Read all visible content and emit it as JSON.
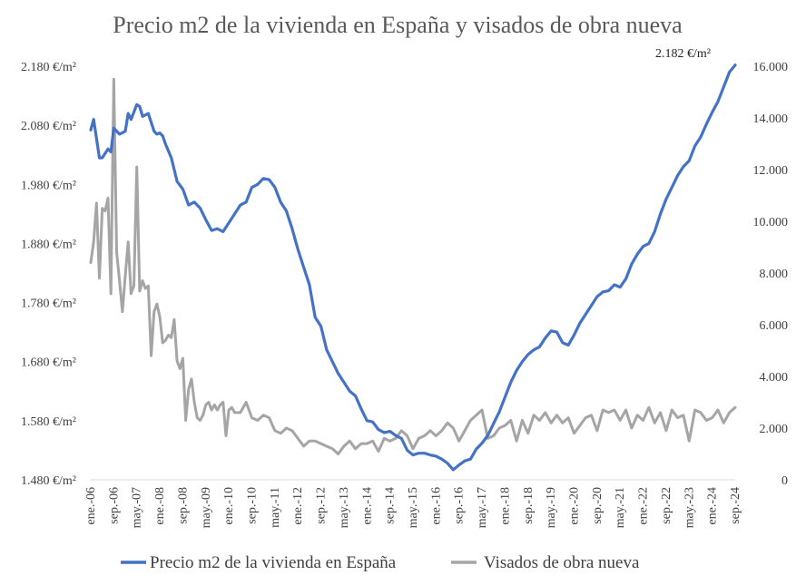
{
  "chart_data": {
    "type": "line",
    "title": "Precio m2 de la vivienda en España y visados de obra nueva",
    "left_axis": {
      "ylim": [
        1480,
        2180
      ],
      "ticks": [
        1480,
        1580,
        1680,
        1780,
        1880,
        1980,
        2080,
        2180
      ],
      "tick_labels": [
        "1.480 €/m²",
        "1.580 €/m²",
        "1.680 €/m²",
        "1.780 €/m²",
        "1.880 €/m²",
        "1.980 €/m²",
        "2.080 €/m²",
        "2.180 €/m²"
      ]
    },
    "right_axis": {
      "ylim": [
        0,
        16000
      ],
      "ticks": [
        0,
        2000,
        4000,
        6000,
        8000,
        10000,
        12000,
        14000,
        16000
      ],
      "tick_labels": [
        "0",
        "2.000",
        "4.000",
        "6.000",
        "8.000",
        "10.000",
        "12.000",
        "14.000",
        "16.000"
      ]
    },
    "x_tick_labels": [
      "ene.-06",
      "sep.-06",
      "may.-07",
      "ene.-08",
      "sep.-08",
      "may.-09",
      "ene.-10",
      "sep.-10",
      "may.-11",
      "ene.-12",
      "sep.-12",
      "may.-13",
      "ene.-14",
      "sep.-14",
      "may.-15",
      "ene.-16",
      "sep.-16",
      "may.-17",
      "ene.-18",
      "sep.-18",
      "may.-19",
      "ene.-20",
      "sep.-20",
      "may.-21",
      "ene.-22",
      "sep.-22",
      "may.-23",
      "ene.-24",
      "sep.-24"
    ],
    "series": [
      {
        "name": "Precio m2 de la vivienda en España",
        "axis": "left",
        "color": "#4472C4",
        "x": [
          0,
          1,
          3,
          4,
          6,
          7,
          8,
          10,
          12,
          13,
          14,
          16,
          17,
          18,
          20,
          22,
          23,
          24,
          25,
          26,
          28,
          30,
          32,
          34,
          36,
          38,
          40,
          42,
          44,
          46,
          48,
          50,
          52,
          54,
          56,
          58,
          60,
          62,
          64,
          66,
          68,
          70,
          72,
          74,
          76,
          78,
          80,
          82,
          84,
          86,
          88,
          90,
          92,
          94,
          96,
          98,
          100,
          102,
          104,
          106,
          108,
          110,
          112,
          114,
          116,
          118,
          120,
          122,
          124,
          126,
          128,
          130,
          132,
          134,
          136,
          138,
          140,
          142,
          144,
          146,
          148,
          150,
          152,
          154,
          156,
          158,
          160,
          162,
          164,
          166,
          168,
          170,
          172,
          174,
          176,
          178,
          180,
          182,
          184,
          186,
          188,
          190,
          192,
          194,
          196,
          198,
          200,
          202,
          204,
          206,
          208,
          210,
          212,
          214,
          216,
          218,
          220,
          222,
          224
        ],
        "values": [
          2072,
          2090,
          2025,
          2025,
          2040,
          2035,
          2075,
          2065,
          2070,
          2100,
          2090,
          2115,
          2112,
          2095,
          2100,
          2070,
          2065,
          2067,
          2062,
          2048,
          2025,
          1985,
          1972,
          1945,
          1950,
          1940,
          1920,
          1902,
          1905,
          1900,
          1915,
          1930,
          1945,
          1950,
          1975,
          1980,
          1990,
          1988,
          1975,
          1950,
          1935,
          1905,
          1870,
          1840,
          1810,
          1755,
          1740,
          1700,
          1680,
          1660,
          1645,
          1630,
          1622,
          1600,
          1580,
          1578,
          1565,
          1560,
          1562,
          1555,
          1550,
          1530,
          1522,
          1525,
          1525,
          1522,
          1520,
          1515,
          1508,
          1497,
          1505,
          1512,
          1515,
          1532,
          1542,
          1555,
          1575,
          1595,
          1620,
          1645,
          1665,
          1680,
          1692,
          1700,
          1705,
          1720,
          1732,
          1730,
          1712,
          1708,
          1725,
          1745,
          1760,
          1775,
          1790,
          1798,
          1800,
          1810,
          1806,
          1820,
          1845,
          1862,
          1875,
          1880,
          1900,
          1930,
          1955,
          1975,
          1995,
          2010,
          2020,
          2045,
          2060,
          2082,
          2102,
          2120,
          2145,
          2170,
          2182
        ]
      },
      {
        "name": "Visados de obra nueva",
        "axis": "right",
        "color": "#A5A5A5",
        "x": [
          0,
          1,
          2,
          3,
          4,
          5,
          6,
          7,
          8,
          9,
          10,
          11,
          12,
          13,
          14,
          15,
          16,
          17,
          18,
          19,
          20,
          21,
          22,
          23,
          24,
          25,
          26,
          27,
          28,
          29,
          30,
          31,
          32,
          33,
          34,
          35,
          36,
          37,
          38,
          39,
          40,
          41,
          42,
          43,
          44,
          45,
          46,
          47,
          48,
          49,
          50,
          52,
          54,
          56,
          58,
          60,
          62,
          64,
          66,
          68,
          70,
          72,
          74,
          76,
          78,
          80,
          82,
          84,
          86,
          88,
          90,
          92,
          94,
          96,
          98,
          100,
          102,
          104,
          106,
          108,
          110,
          112,
          114,
          116,
          118,
          120,
          122,
          124,
          126,
          128,
          130,
          132,
          134,
          136,
          138,
          140,
          142,
          144,
          146,
          148,
          150,
          152,
          154,
          156,
          158,
          160,
          162,
          164,
          166,
          168,
          170,
          172,
          174,
          176,
          178,
          180,
          182,
          184,
          186,
          188,
          190,
          192,
          194,
          196,
          198,
          200,
          202,
          204,
          206,
          208,
          210,
          212,
          214,
          216,
          218,
          220,
          222,
          224
        ],
        "values": [
          8400,
          9200,
          10700,
          7800,
          10500,
          10400,
          10900,
          7200,
          15500,
          8800,
          7700,
          6500,
          7900,
          9200,
          7200,
          7500,
          12100,
          7300,
          7700,
          7400,
          7500,
          4800,
          6500,
          6800,
          6300,
          5300,
          5400,
          5600,
          5500,
          6200,
          4600,
          4300,
          4700,
          2300,
          3500,
          3900,
          3000,
          2400,
          2300,
          2500,
          2900,
          3000,
          2700,
          2900,
          2700,
          2900,
          3000,
          1700,
          2700,
          2800,
          2600,
          2600,
          3000,
          2400,
          2300,
          2500,
          2400,
          1900,
          1800,
          2000,
          1900,
          1600,
          1300,
          1500,
          1500,
          1400,
          1300,
          1200,
          1000,
          1300,
          1500,
          1200,
          1400,
          1400,
          1500,
          1100,
          1600,
          1500,
          1600,
          1900,
          1700,
          1200,
          1600,
          1700,
          1900,
          1700,
          1900,
          2200,
          2000,
          1500,
          1900,
          2300,
          2500,
          2700,
          1600,
          1700,
          2000,
          2100,
          2300,
          1500,
          2300,
          1800,
          2500,
          2300,
          2600,
          2200,
          2500,
          2200,
          2400,
          1800,
          2100,
          2400,
          2500,
          1900,
          2700,
          2600,
          2700,
          2300,
          2700,
          2000,
          2500,
          2300,
          2800,
          2200,
          2600,
          1900,
          2700,
          2400,
          2500,
          1500,
          2700,
          2600,
          2300,
          2400,
          2700,
          2200,
          2600,
          2800
        ]
      }
    ],
    "annotation": "2.182 €/m²",
    "legend": "bottom"
  }
}
